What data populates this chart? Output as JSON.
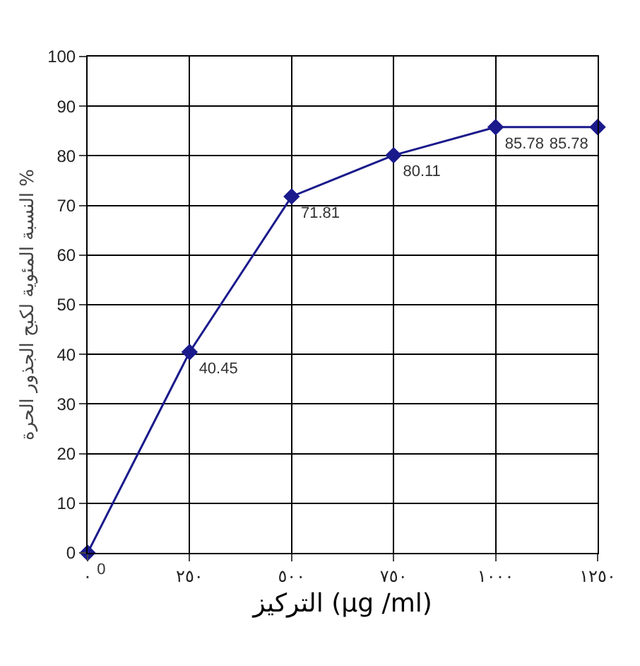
{
  "chart_data": {
    "type": "line",
    "xlabel": "التركيز (µg /ml)",
    "ylabel": "النسبة المئوية لكبح الجذور الحرة %",
    "x": [
      0,
      250,
      500,
      750,
      1000,
      1250
    ],
    "series": [
      {
        "color": "#1a1a8c",
        "values": [
          0,
          40.45,
          71.81,
          80.11,
          85.78,
          85.78
        ]
      }
    ],
    "xlim": [
      0,
      1250
    ],
    "xticks": [
      {
        "value": 0,
        "label": "٠"
      },
      {
        "value": 250,
        "label": "٢٥٠"
      },
      {
        "value": 500,
        "label": "٥٠٠"
      },
      {
        "value": 750,
        "label": "٧٥٠"
      },
      {
        "value": 1000,
        "label": "١٠٠٠"
      },
      {
        "value": 1250,
        "label": "١٢٥٠"
      }
    ],
    "ylim": [
      0,
      100
    ],
    "yticks": [
      0,
      10,
      20,
      30,
      40,
      50,
      60,
      70,
      80,
      90,
      100
    ],
    "grid": true,
    "marker": "diamond",
    "line_style": "solid",
    "data_labels": true
  }
}
